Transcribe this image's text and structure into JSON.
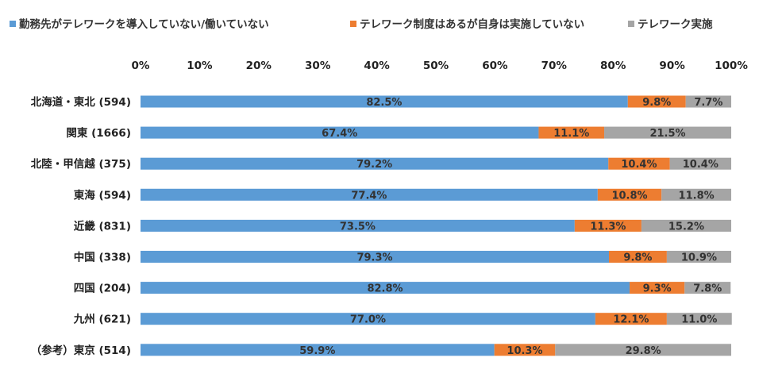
{
  "chart_data": {
    "type": "bar",
    "orientation": "horizontal",
    "stacked": "percent",
    "categories": [
      "北海道・東北 (594)",
      "関東 (1666)",
      "北陸・甲信越 (375)",
      "東海 (594)",
      "近畿 (831)",
      "中国 (338)",
      "四国 (204)",
      "九州 (621)",
      "（参考）東京 (514)"
    ],
    "series": [
      {
        "name": "勤務先がテレワークを導入していない/働いていない",
        "color": "#5B9BD5",
        "values": [
          82.5,
          67.4,
          79.2,
          77.4,
          73.5,
          79.3,
          82.8,
          77.0,
          59.9
        ],
        "labels": [
          "82.5%",
          "67.4%",
          "79.2%",
          "77.4%",
          "73.5%",
          "79.3%",
          "82.8%",
          "77.0%",
          "59.9%"
        ]
      },
      {
        "name": "テレワーク制度はあるが自身は実施していない",
        "color": "#ED7D31",
        "values": [
          9.8,
          11.1,
          10.4,
          10.8,
          11.3,
          9.8,
          9.3,
          12.1,
          10.3
        ],
        "labels": [
          "9.8%",
          "11.1%",
          "10.4%",
          "10.8%",
          "11.3%",
          "9.8%",
          "9.3%",
          "12.1%",
          "10.3%"
        ]
      },
      {
        "name": "テレワーク実施",
        "color": "#A5A5A5",
        "values": [
          7.7,
          21.5,
          10.4,
          11.8,
          15.2,
          10.9,
          7.8,
          11.0,
          29.8
        ],
        "labels": [
          "7.7%",
          "21.5%",
          "10.4%",
          "11.8%",
          "15.2%",
          "10.9%",
          "7.8%",
          "11.0%",
          "29.8%"
        ]
      }
    ],
    "xlim": [
      0,
      100
    ],
    "xticks": [
      "0%",
      "10%",
      "20%",
      "30%",
      "40%",
      "50%",
      "60%",
      "70%",
      "80%",
      "90%",
      "100%"
    ],
    "legend_position": "top",
    "x_axis_position": "top",
    "grid": false
  }
}
